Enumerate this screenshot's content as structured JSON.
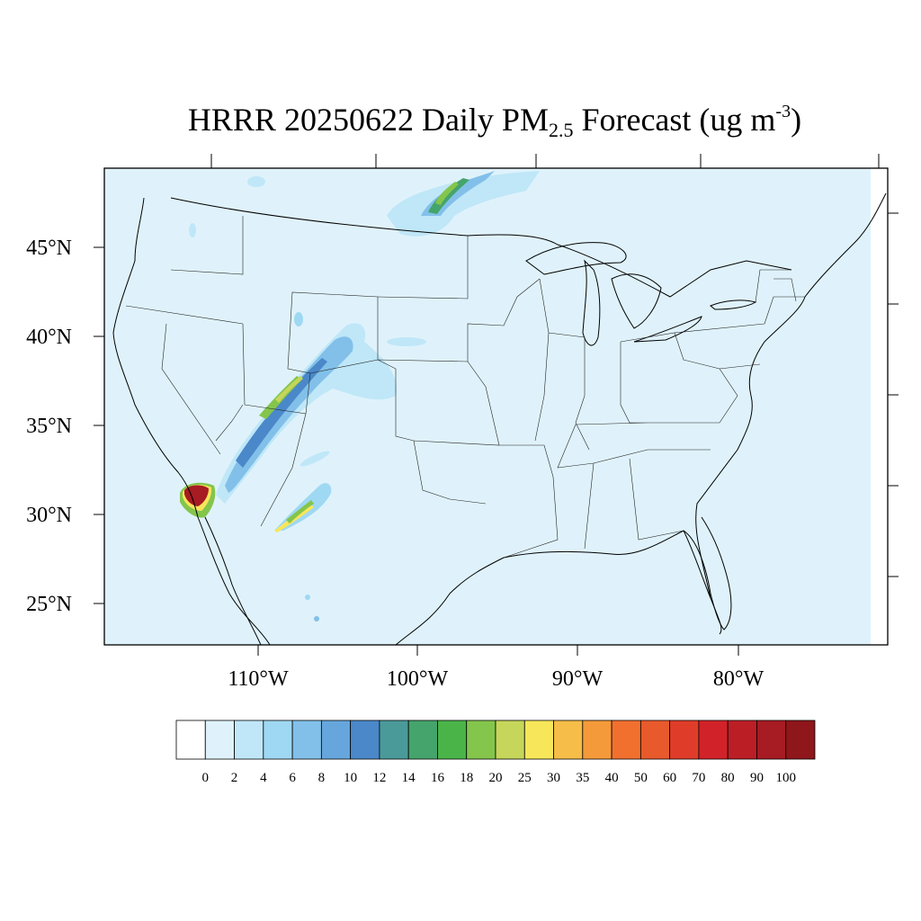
{
  "title": {
    "prefix": "HRRR 20250622 Daily PM",
    "subscript": "2.5",
    "middle": " Forecast (ug m",
    "superscript": "-3",
    "suffix": ")"
  },
  "map": {
    "lat_labels": [
      "45°N",
      "40°N",
      "35°N",
      "30°N",
      "25°N"
    ],
    "lon_labels": [
      "110°W",
      "100°W",
      "90°W",
      "80°W"
    ],
    "background_color": "#dff2fb"
  },
  "colorbar": {
    "colors": [
      "#ffffff",
      "#dff2fb",
      "#bfe7f8",
      "#9fd8f3",
      "#82c0e9",
      "#66a6dd",
      "#4a88c9",
      "#4a9a9a",
      "#45a46c",
      "#4ab449",
      "#84c54c",
      "#c5d65a",
      "#f8e65a",
      "#f6bd48",
      "#f59a3a",
      "#f2702e",
      "#e85a2c",
      "#df3d29",
      "#d12229",
      "#bc1e26",
      "#a71b22",
      "#8f161b"
    ],
    "tick_labels": [
      "0",
      "2",
      "4",
      "6",
      "8",
      "10",
      "12",
      "14",
      "16",
      "18",
      "20",
      "25",
      "30",
      "35",
      "40",
      "50",
      "60",
      "70",
      "80",
      "90",
      "100"
    ]
  }
}
